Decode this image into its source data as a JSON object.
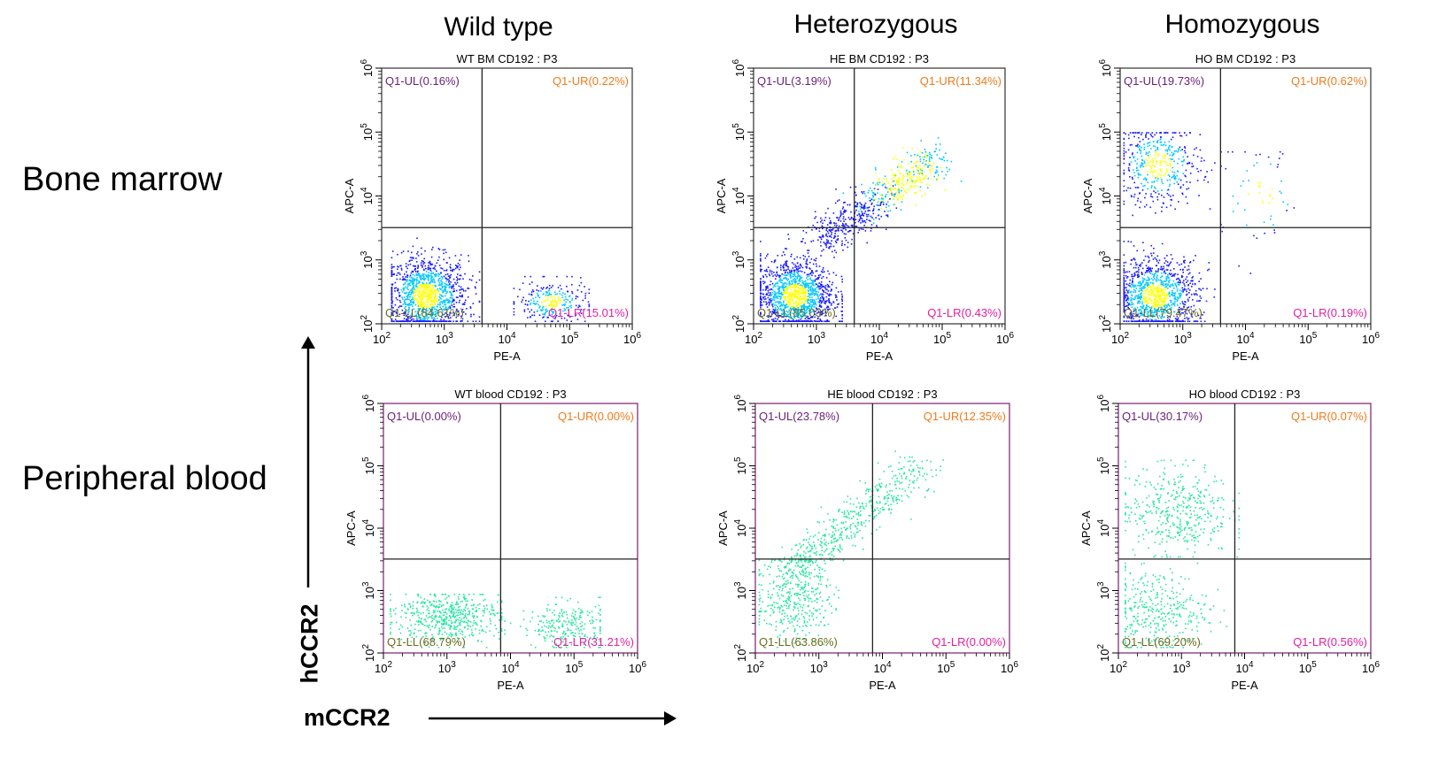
{
  "column_titles": [
    "Wild type",
    "Heterozygous",
    "Homozygous"
  ],
  "row_labels": [
    "Bone marrow",
    "Peripheral blood"
  ],
  "axis_captions": {
    "vertical": "hCCR2",
    "horizontal": "mCCR2"
  },
  "colors": {
    "q_ul": "#6a1f7a",
    "q_ur": "#f07a1a",
    "q_ll": "#6b6b1e",
    "q_lr": "#e01fa4",
    "bm_low": "#1a1aff",
    "bm_mid": "#00c8ff",
    "bm_high": "#ffff00",
    "blood": "#29e6a0",
    "border_bm": "#333333",
    "border_blood": "#7a1f70"
  },
  "chart_data": [
    {
      "type": "scatter",
      "id": "wt-bm",
      "tissue": "bone-marrow",
      "title": "WT BM CD192 : P3",
      "xlabel": "PE-A",
      "ylabel": "APC-A",
      "scale": "log",
      "xlim": [
        100,
        1000000
      ],
      "ylim": [
        100,
        1000000
      ],
      "x_ticks": [
        "10^2",
        "10^3",
        "10^4",
        "10^5",
        "10^6"
      ],
      "y_ticks": [
        "10^2",
        "10^3",
        "10^4",
        "10^5",
        "10^6"
      ],
      "gate_x": 4000,
      "gate_y": 3200,
      "quadrants": {
        "UL": "Q1-UL(0.16%)",
        "UR": "Q1-UR(0.22%)",
        "LL": "Q1-LL(84.61%)",
        "LR": "Q1-LR(15.01%)"
      },
      "clusters": [
        {
          "x": [
            2.15,
            3.55
          ],
          "y": [
            2.05,
            3.35
          ],
          "n": 1200,
          "core": [
            2.7,
            2.45
          ]
        },
        {
          "x": [
            4.1,
            5.3
          ],
          "y": [
            2.05,
            2.75
          ],
          "n": 260,
          "core": [
            4.7,
            2.35
          ]
        }
      ]
    },
    {
      "type": "scatter",
      "id": "he-bm",
      "tissue": "bone-marrow",
      "title": "HE BM CD192 : P3",
      "xlabel": "PE-A",
      "ylabel": "APC-A",
      "scale": "log",
      "xlim": [
        100,
        1000000
      ],
      "ylim": [
        100,
        1000000
      ],
      "x_ticks": [
        "10^2",
        "10^3",
        "10^4",
        "10^5",
        "10^6"
      ],
      "y_ticks": [
        "10^2",
        "10^3",
        "10^4",
        "10^5",
        "10^6"
      ],
      "gate_x": 4000,
      "gate_y": 3200,
      "quadrants": {
        "UL": "Q1-UL(3.19%)",
        "UR": "Q1-UR(11.34%)",
        "LL": "Q1-LL(85.03%)",
        "LR": "Q1-LR(0.43%)"
      },
      "clusters": [
        {
          "x": [
            2.1,
            3.4
          ],
          "y": [
            2.05,
            3.3
          ],
          "n": 1300,
          "core": [
            2.65,
            2.45
          ]
        },
        {
          "diag": true,
          "from": [
            3.0,
            3.3
          ],
          "to": [
            4.9,
            4.6
          ],
          "n": 700
        }
      ]
    },
    {
      "type": "scatter",
      "id": "ho-bm",
      "tissue": "bone-marrow",
      "title": "HO BM CD192 : P3",
      "xlabel": "PE-A",
      "ylabel": "APC-A",
      "scale": "log",
      "xlim": [
        100,
        1000000
      ],
      "ylim": [
        100,
        1000000
      ],
      "x_ticks": [
        "10^2",
        "10^3",
        "10^4",
        "10^5",
        "10^6"
      ],
      "y_ticks": [
        "10^2",
        "10^3",
        "10^4",
        "10^5",
        "10^6"
      ],
      "gate_x": 4000,
      "gate_y": 3200,
      "quadrants": {
        "UL": "Q1-UL(19.73%)",
        "UR": "Q1-UR(0.62%)",
        "LL": "Q1-LL(79.47%)",
        "LR": "Q1-LR(0.19%)"
      },
      "clusters": [
        {
          "x": [
            2.05,
            3.5
          ],
          "y": [
            2.05,
            3.3
          ],
          "n": 1100,
          "core": [
            2.55,
            2.45
          ]
        },
        {
          "x": [
            2.05,
            3.5
          ],
          "y": [
            3.6,
            5.0
          ],
          "n": 450,
          "core": [
            2.6,
            4.5
          ]
        },
        {
          "x": [
            3.6,
            5.2
          ],
          "y": [
            2.8,
            4.7
          ],
          "n": 60,
          "core": [
            4.2,
            4.0
          ]
        }
      ]
    },
    {
      "type": "scatter",
      "id": "wt-blood",
      "tissue": "blood",
      "title": "WT blood CD192 : P3",
      "xlabel": "PE-A",
      "ylabel": "APC-A",
      "scale": "log",
      "xlim": [
        100,
        1000000
      ],
      "ylim": [
        100,
        1000000
      ],
      "x_ticks": [
        "10^2",
        "10^3",
        "10^4",
        "10^5",
        "10^6"
      ],
      "y_ticks": [
        "10^2",
        "10^3",
        "10^4",
        "10^5",
        "10^6"
      ],
      "gate_x": 7000,
      "gate_y": 3200,
      "quadrants": {
        "UL": "Q1-UL(0.00%)",
        "UR": "Q1-UR(0.00%)",
        "LL": "Q1-LL(68.79%)",
        "LR": "Q1-LR(31.21%)"
      },
      "clusters": [
        {
          "x": [
            2.1,
            3.85
          ],
          "y": [
            2.1,
            2.95
          ],
          "n": 520,
          "core": [
            3.0,
            2.6
          ]
        },
        {
          "x": [
            3.9,
            5.4
          ],
          "y": [
            2.1,
            2.9
          ],
          "n": 240,
          "core": [
            4.85,
            2.45
          ]
        }
      ]
    },
    {
      "type": "scatter",
      "id": "he-blood",
      "tissue": "blood",
      "title": "HE blood CD192 : P3",
      "xlabel": "PE-A",
      "ylabel": "APC-A",
      "scale": "log",
      "xlim": [
        100,
        1000000
      ],
      "ylim": [
        100,
        1000000
      ],
      "x_ticks": [
        "10^2",
        "10^3",
        "10^4",
        "10^5",
        "10^6"
      ],
      "y_ticks": [
        "10^2",
        "10^3",
        "10^4",
        "10^5",
        "10^6"
      ],
      "gate_x": 7000,
      "gate_y": 3200,
      "quadrants": {
        "UL": "Q1-UL(23.78%)",
        "UR": "Q1-UR(12.35%)",
        "LL": "Q1-LL(63.86%)",
        "LR": "Q1-LR(0.00%)"
      },
      "clusters": [
        {
          "x": [
            2.05,
            3.3
          ],
          "y": [
            2.1,
            3.5
          ],
          "n": 380,
          "core": [
            2.6,
            2.9
          ]
        },
        {
          "diag": true,
          "from": [
            2.5,
            3.3
          ],
          "to": [
            4.6,
            5.0
          ],
          "n": 520
        }
      ]
    },
    {
      "type": "scatter",
      "id": "ho-blood",
      "tissue": "blood",
      "title": "HO blood CD192 : P3",
      "xlabel": "PE-A",
      "ylabel": "APC-A",
      "scale": "log",
      "xlim": [
        100,
        1000000
      ],
      "ylim": [
        100,
        1000000
      ],
      "x_ticks": [
        "10^2",
        "10^3",
        "10^4",
        "10^5",
        "10^6"
      ],
      "y_ticks": [
        "10^2",
        "10^3",
        "10^4",
        "10^5",
        "10^6"
      ],
      "gate_x": 7000,
      "gate_y": 3200,
      "quadrants": {
        "UL": "Q1-UL(30.17%)",
        "UR": "Q1-UR(0.07%)",
        "LL": "Q1-LL(69.20%)",
        "LR": "Q1-LR(0.56%)"
      },
      "clusters": [
        {
          "x": [
            2.1,
            3.8
          ],
          "y": [
            2.1,
            3.45
          ],
          "n": 340,
          "core": [
            2.6,
            2.7
          ]
        },
        {
          "x": [
            2.1,
            3.9
          ],
          "y": [
            3.55,
            5.1
          ],
          "n": 420,
          "core": [
            2.9,
            4.3
          ]
        }
      ]
    }
  ]
}
